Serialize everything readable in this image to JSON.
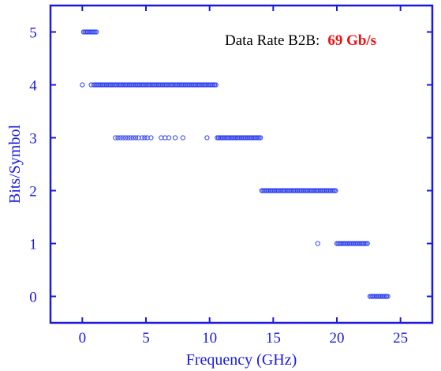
{
  "chart_data": {
    "type": "scatter",
    "title": "",
    "xlabel": "Frequency (GHz)",
    "ylabel": "Bits/Symbol",
    "xlim": [
      -2.5,
      27.5
    ],
    "ylim": [
      -0.5,
      5.5
    ],
    "xticks": [
      0,
      5,
      10,
      15,
      20,
      25
    ],
    "xtick_labels": [
      "0",
      "5",
      "10",
      "15",
      "20",
      "25"
    ],
    "yticks": [
      0,
      1,
      2,
      3,
      4,
      5
    ],
    "ytick_labels": [
      "0",
      "1",
      "2",
      "3",
      "4",
      "5"
    ],
    "grid": false,
    "annotation": {
      "label": "Data Rate B2B:",
      "value": "69 Gb/s"
    },
    "colors": {
      "axis": "#1a1ae0",
      "marker": "#3344ee",
      "annotation_value": "#ee1111"
    },
    "series": [
      {
        "marker": "open-circle",
        "dense_runs": [
          {
            "y": 5,
            "x_start": 0.1,
            "x_end": 1.1,
            "step": 0.1
          },
          {
            "y": 4,
            "x_start": 0.9,
            "x_end": 10.5,
            "step": 0.1
          },
          {
            "y": 3,
            "x_start": 10.6,
            "x_end": 14.0,
            "step": 0.1
          },
          {
            "y": 2,
            "x_start": 14.1,
            "x_end": 19.9,
            "step": 0.1
          },
          {
            "y": 1,
            "x_start": 20.0,
            "x_end": 22.4,
            "step": 0.1
          },
          {
            "y": 0,
            "x_start": 22.6,
            "x_end": 24.0,
            "step": 0.1
          }
        ],
        "points": [
          {
            "x": 0.0,
            "y": 4
          },
          {
            "x": 0.7,
            "y": 4
          },
          {
            "x": 2.6,
            "y": 3
          },
          {
            "x": 2.8,
            "y": 3
          },
          {
            "x": 3.0,
            "y": 3
          },
          {
            "x": 3.2,
            "y": 3
          },
          {
            "x": 3.4,
            "y": 3
          },
          {
            "x": 3.6,
            "y": 3
          },
          {
            "x": 3.8,
            "y": 3
          },
          {
            "x": 4.0,
            "y": 3
          },
          {
            "x": 4.2,
            "y": 3
          },
          {
            "x": 4.4,
            "y": 3
          },
          {
            "x": 4.7,
            "y": 3
          },
          {
            "x": 4.9,
            "y": 3
          },
          {
            "x": 5.1,
            "y": 3
          },
          {
            "x": 5.4,
            "y": 3
          },
          {
            "x": 6.2,
            "y": 3
          },
          {
            "x": 6.5,
            "y": 3
          },
          {
            "x": 6.8,
            "y": 3
          },
          {
            "x": 7.3,
            "y": 3
          },
          {
            "x": 7.9,
            "y": 3
          },
          {
            "x": 9.8,
            "y": 3
          },
          {
            "x": 18.5,
            "y": 1
          }
        ]
      }
    ]
  }
}
